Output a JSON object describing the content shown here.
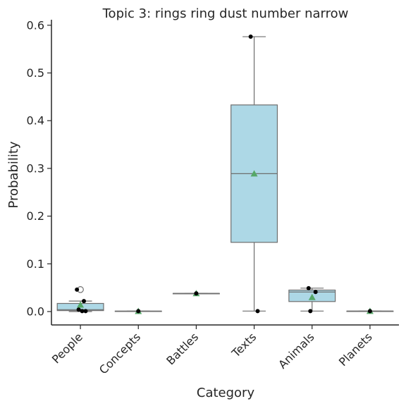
{
  "chart_data": {
    "type": "box",
    "title": "Topic 3: rings ring dust number narrow",
    "xlabel": "Category",
    "ylabel": "Probability",
    "ylim": [
      -0.028,
      0.605
    ],
    "yticks": [
      0.0,
      0.1,
      0.2,
      0.3,
      0.4,
      0.5,
      0.6
    ],
    "ytick_labels": [
      "0.0",
      "0.1",
      "0.2",
      "0.3",
      "0.4",
      "0.5",
      "0.6"
    ],
    "categories": [
      "People",
      "Concepts",
      "Battles",
      "Texts",
      "Animals",
      "Planets"
    ],
    "grid": false,
    "box_color": "#add8e6",
    "mean_color": "#55a868",
    "point_color": "#000000",
    "boxes": [
      {
        "category": "People",
        "whisker_low": 0.0,
        "q1": 0.002,
        "median": 0.004,
        "q3": 0.017,
        "whisker_high": 0.022,
        "mean": 0.014,
        "outliers": [
          0.046
        ]
      },
      {
        "category": "Concepts",
        "whisker_low": 0.0005,
        "q1": 0.0005,
        "median": 0.0008,
        "q3": 0.001,
        "whisker_high": 0.001,
        "mean": 0.0008,
        "outliers": []
      },
      {
        "category": "Battles",
        "whisker_low": 0.038,
        "q1": 0.038,
        "median": 0.038,
        "q3": 0.038,
        "whisker_high": 0.038,
        "mean": 0.038,
        "outliers": []
      },
      {
        "category": "Texts",
        "whisker_low": 0.001,
        "q1": 0.145,
        "median": 0.289,
        "q3": 0.433,
        "whisker_high": 0.576,
        "mean": 0.289,
        "outliers": []
      },
      {
        "category": "Animals",
        "whisker_low": 0.001,
        "q1": 0.021,
        "median": 0.041,
        "q3": 0.045,
        "whisker_high": 0.049,
        "mean": 0.03,
        "outliers": []
      },
      {
        "category": "Planets",
        "whisker_low": 0.0005,
        "q1": 0.0005,
        "median": 0.001,
        "q3": 0.001,
        "whisker_high": 0.001,
        "mean": 0.001,
        "outliers": []
      }
    ],
    "points": [
      {
        "category": "People",
        "values": [
          0.046,
          0.022,
          0.004,
          0.001,
          0.001
        ]
      },
      {
        "category": "Concepts",
        "values": [
          0.001
        ]
      },
      {
        "category": "Battles",
        "values": [
          0.038
        ]
      },
      {
        "category": "Texts",
        "values": [
          0.576,
          0.001
        ]
      },
      {
        "category": "Animals",
        "values": [
          0.049,
          0.041,
          0.001
        ]
      },
      {
        "category": "Planets",
        "values": [
          0.001
        ]
      }
    ]
  }
}
